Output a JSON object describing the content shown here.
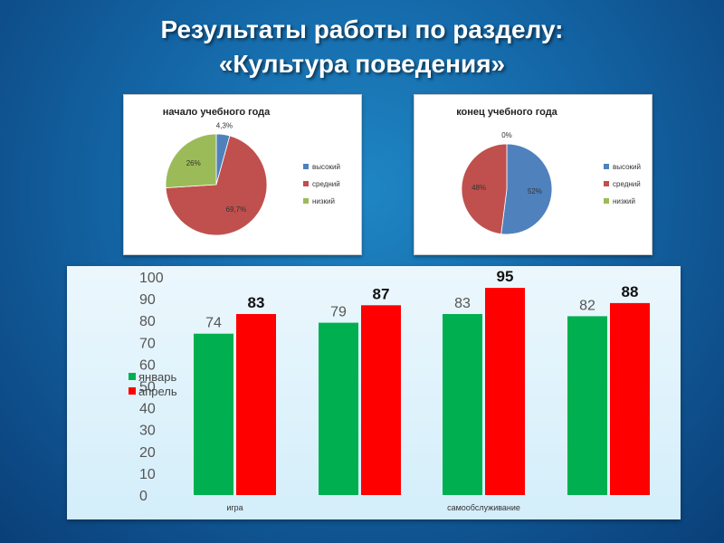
{
  "slide": {
    "title_line1": "Результаты работы по разделу:",
    "title_line2": "«Культура поведения»"
  },
  "chart_data": [
    {
      "type": "pie",
      "title": "начало учебного года",
      "slices": [
        {
          "name": "высокий",
          "value": 4.3,
          "label": "4,3%",
          "color": "#4f81bd"
        },
        {
          "name": "средний",
          "value": 69.7,
          "label": "69,7%",
          "color": "#c0504d"
        },
        {
          "name": "низкий",
          "value": 26,
          "label": "26%",
          "color": "#9bbb59"
        }
      ],
      "legend": "right"
    },
    {
      "type": "pie",
      "title": "конец  учебного года",
      "slices": [
        {
          "name": "высокий",
          "value": 52,
          "label": "52%",
          "color": "#4f81bd"
        },
        {
          "name": "средний",
          "value": 48,
          "label": "48%",
          "color": "#c0504d"
        },
        {
          "name": "низкий",
          "value": 0,
          "label": "0%",
          "color": "#9bbb59"
        }
      ],
      "legend": "right"
    },
    {
      "type": "bar",
      "categories": [
        "игра",
        "",
        "самообслуживание",
        ""
      ],
      "series": [
        {
          "name": "январь",
          "values": [
            74,
            79,
            83,
            82
          ],
          "color": "#00b050"
        },
        {
          "name": "апрель",
          "values": [
            83,
            87,
            95,
            88
          ],
          "color": "#ff0000"
        }
      ],
      "ylim": [
        0,
        100
      ],
      "yticks": [
        "0",
        "10",
        "20",
        "30",
        "40",
        "50",
        "60",
        "70",
        "80",
        "90",
        "100"
      ],
      "legend": "left"
    }
  ]
}
